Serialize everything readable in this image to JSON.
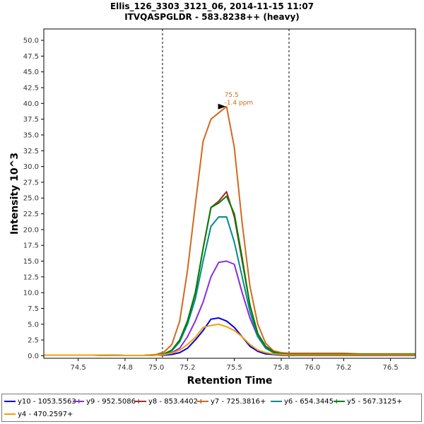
{
  "chart_data": {
    "type": "line",
    "title_lines": [
      "Ellis_126_3303_3121_06, 2014-11-15 11:07",
      "ITVQASPGLDR - 583.8238++ (heavy)"
    ],
    "xlabel": "Retention Time",
    "ylabel": "Intensity 10^3",
    "xlim": [
      74.28,
      76.66
    ],
    "ylim": [
      -0.4,
      51.8
    ],
    "xticks": [
      74.5,
      74.8,
      75.0,
      75.2,
      75.5,
      75.8,
      76.0,
      76.2,
      76.5
    ],
    "yticks": [
      0,
      2.5,
      5,
      7.5,
      10,
      12.5,
      15,
      17.5,
      20,
      22.5,
      25,
      27.5,
      30,
      32.5,
      35,
      37.5,
      40,
      42.5,
      45,
      47.5,
      50
    ],
    "ytick_labels": [
      "0.0",
      "2.5",
      "5.0",
      "7.5",
      "10.0",
      "12.5",
      "15.0",
      "17.5",
      "20.0",
      "22.5",
      "25.0",
      "27.5",
      "30.0",
      "32.5",
      "35.0",
      "37.5",
      "40.0",
      "42.5",
      "45.0",
      "47.5",
      "50.0"
    ],
    "boundaries": [
      75.04,
      75.85
    ],
    "x": [
      74.28,
      74.45,
      74.6,
      74.8,
      74.92,
      75.0,
      75.05,
      75.1,
      75.15,
      75.2,
      75.25,
      75.3,
      75.35,
      75.4,
      75.45,
      75.5,
      75.55,
      75.6,
      75.65,
      75.7,
      75.75,
      75.8,
      75.85,
      75.9,
      76.0,
      76.1,
      76.2,
      76.3,
      76.4,
      76.5,
      76.66
    ],
    "series": [
      {
        "name": "y10 - 1053.5563+",
        "color": "#0000e0",
        "values": [
          0.1,
          0.1,
          0.1,
          0.05,
          0.05,
          0.1,
          0.1,
          0.2,
          0.5,
          1.2,
          2.5,
          4.0,
          5.8,
          6.0,
          5.5,
          4.5,
          3.0,
          1.5,
          0.7,
          0.3,
          0.2,
          0.1,
          0.05,
          0.05,
          0.05,
          0.05,
          0.05,
          0.05,
          0.05,
          0.05,
          0.05
        ]
      },
      {
        "name": "y9 - 952.5086+",
        "color": "#8a2be2",
        "values": [
          0.1,
          0.1,
          0.1,
          0.05,
          0.05,
          0.1,
          0.2,
          0.5,
          1.2,
          3.0,
          5.5,
          8.5,
          12.5,
          14.8,
          15.0,
          14.5,
          10.0,
          6.0,
          3.0,
          1.5,
          0.7,
          0.3,
          0.2,
          0.15,
          0.1,
          0.1,
          0.1,
          0.1,
          0.1,
          0.1,
          0.1
        ]
      },
      {
        "name": "y8 - 853.4402+",
        "color": "#a52a2a",
        "values": [
          0.1,
          0.1,
          0.1,
          0.05,
          0.05,
          0.1,
          0.3,
          0.9,
          2.5,
          5.5,
          10.0,
          17.0,
          23.5,
          24.5,
          26.0,
          22.0,
          15.0,
          8.0,
          3.5,
          1.5,
          0.6,
          0.3,
          0.2,
          0.2,
          0.2,
          0.2,
          0.2,
          0.2,
          0.2,
          0.2,
          0.2
        ]
      },
      {
        "name": "y7 - 725.3816+",
        "color": "#d2691e",
        "values": [
          0.1,
          0.1,
          0.1,
          0.05,
          0.05,
          0.2,
          0.6,
          1.8,
          5.5,
          13.5,
          24.0,
          34.0,
          37.5,
          38.5,
          39.5,
          33.0,
          21.0,
          11.0,
          5.0,
          2.0,
          0.8,
          0.5,
          0.4,
          0.4,
          0.4,
          0.4,
          0.4,
          0.3,
          0.3,
          0.3,
          0.3
        ]
      },
      {
        "name": "y6 - 654.3445+",
        "color": "#008b8b",
        "values": [
          0.1,
          0.1,
          0.1,
          0.05,
          0.05,
          0.1,
          0.3,
          0.8,
          2.2,
          5.0,
          9.0,
          15.0,
          20.5,
          22.0,
          22.0,
          18.0,
          12.5,
          7.0,
          3.0,
          1.2,
          0.5,
          0.3,
          0.2,
          0.2,
          0.2,
          0.2,
          0.2,
          0.2,
          0.2,
          0.2,
          0.2
        ]
      },
      {
        "name": "y5 - 567.3125+",
        "color": "#008000",
        "values": [
          0.1,
          0.1,
          0.1,
          0.05,
          0.05,
          0.1,
          0.3,
          0.9,
          2.5,
          5.5,
          10.0,
          17.0,
          23.5,
          24.2,
          25.3,
          22.5,
          15.5,
          8.0,
          3.5,
          1.5,
          0.6,
          0.3,
          0.2,
          0.2,
          0.2,
          0.2,
          0.2,
          0.2,
          0.2,
          0.2,
          0.2
        ]
      },
      {
        "name": "y4 - 470.2597+",
        "color": "#f5a000",
        "values": [
          0.1,
          0.1,
          0.1,
          0.05,
          0.05,
          0.1,
          0.2,
          0.4,
          0.9,
          1.8,
          2.9,
          4.5,
          4.8,
          5.0,
          4.6,
          4.0,
          3.0,
          1.8,
          0.9,
          0.5,
          0.3,
          0.2,
          0.1,
          0.1,
          0.1,
          0.1,
          0.1,
          0.1,
          0.1,
          0.1,
          0.1
        ]
      }
    ],
    "annotation": {
      "x": 75.45,
      "y": 39.5,
      "lines": [
        "75.5",
        "-1.4 ppm"
      ],
      "color": "#d2691e"
    }
  }
}
